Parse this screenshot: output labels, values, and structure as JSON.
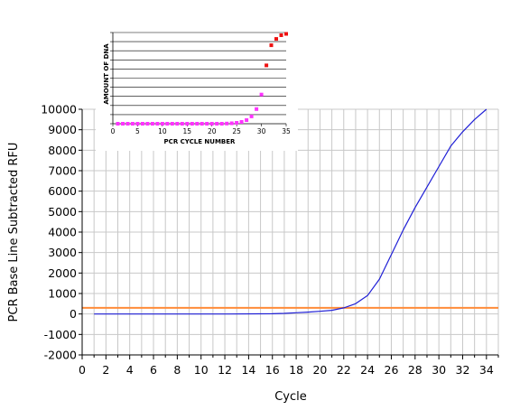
{
  "chart_data": [
    {
      "type": "line",
      "title": "",
      "xlabel": "Cycle",
      "ylabel": "PCR Base Line Subtracted RFU",
      "xlim": [
        0,
        35
      ],
      "ylim": [
        -2000,
        10000
      ],
      "x_ticks": [
        0,
        2,
        4,
        6,
        8,
        10,
        12,
        14,
        16,
        18,
        20,
        22,
        24,
        26,
        28,
        30,
        32,
        34
      ],
      "y_ticks": [
        -2000,
        -1000,
        0,
        1000,
        2000,
        3000,
        4000,
        5000,
        6000,
        7000,
        8000,
        9000,
        10000
      ],
      "x_gridlines": [
        0,
        1,
        2,
        3,
        4,
        5,
        6,
        7,
        8,
        9,
        10,
        11,
        12,
        13,
        14,
        15,
        16,
        17,
        18,
        19,
        20,
        21,
        22,
        23,
        24,
        25,
        26,
        27,
        28,
        29,
        30,
        31,
        32,
        33,
        34,
        35
      ],
      "grid": true,
      "series": [
        {
          "color": "#1f1fd6",
          "x": [
            1,
            4,
            8,
            12,
            16,
            17,
            18,
            19,
            20,
            21,
            22,
            23,
            24,
            25,
            26,
            27,
            28,
            29,
            30,
            31,
            32,
            33,
            34
          ],
          "y": [
            0,
            0,
            0,
            0,
            10,
            30,
            60,
            90,
            130,
            180,
            300,
            500,
            900,
            1700,
            2900,
            4100,
            5200,
            6200,
            7200,
            8200,
            8900,
            9500,
            10000
          ]
        },
        {
          "color": "#ff8c3a",
          "x": [
            0,
            35
          ],
          "y": [
            300,
            300
          ]
        }
      ]
    },
    {
      "type": "scatter",
      "title": "",
      "xlabel": "PCR CYCLE NUMBER",
      "ylabel": "AMOUNT OF DNA",
      "xlim": [
        0,
        35
      ],
      "ylim": [
        0,
        10
      ],
      "x_ticks": [
        0,
        5,
        10,
        15,
        20,
        25,
        30,
        35
      ],
      "grid": true,
      "series": [
        {
          "color": "#ff33ff",
          "x": [
            1,
            2,
            3,
            4,
            5,
            6,
            7,
            8,
            9,
            10,
            11,
            12,
            13,
            14,
            15,
            16,
            17,
            18,
            19,
            20,
            21,
            22,
            23,
            24,
            25,
            26,
            27,
            28,
            29,
            30
          ],
          "y": [
            0.0,
            0.0,
            0.0,
            0.0,
            0.0,
            0.0,
            0.0,
            0.0,
            0.0,
            0.0,
            0.0,
            0.0,
            0.0,
            0.0,
            0.0,
            0.0,
            0.0,
            0.0,
            0.0,
            0.0,
            0.0,
            0.0,
            0.02,
            0.05,
            0.1,
            0.2,
            0.4,
            0.8,
            1.6,
            3.2
          ]
        },
        {
          "color": "#ee1111",
          "x": [
            31,
            32,
            33,
            34,
            35
          ],
          "y": [
            6.4,
            8.6,
            9.3,
            9.7,
            9.85
          ]
        }
      ]
    }
  ]
}
